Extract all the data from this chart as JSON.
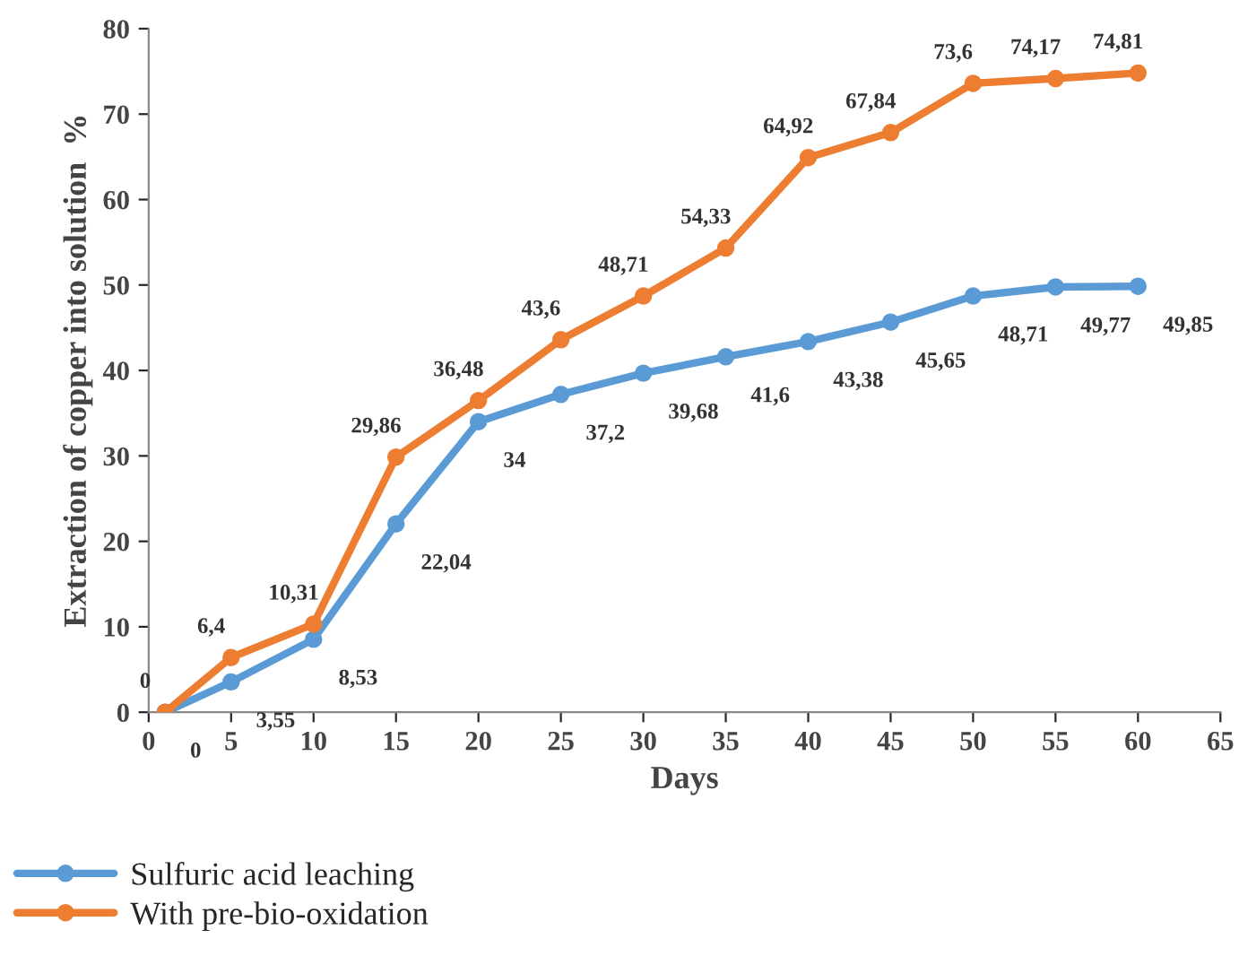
{
  "chart_data": {
    "type": "line",
    "xlabel": "Days",
    "ylabel": "Extraction of copper into solution  %",
    "x": [
      1,
      5,
      10,
      15,
      20,
      25,
      30,
      35,
      40,
      45,
      50,
      55,
      60
    ],
    "series": [
      {
        "name": "Sulfuric acid leaching",
        "color": "#5b9bd5",
        "values": [
          0,
          3.55,
          8.53,
          22.04,
          34,
          37.2,
          39.68,
          41.6,
          43.38,
          45.65,
          48.71,
          49.77,
          49.85
        ],
        "value_labels": [
          "0",
          "3,55",
          "8,53",
          "22,04",
          "34",
          "37,2",
          "39,68",
          "41,6",
          "43,38",
          "45,65",
          "48,71",
          "49,77",
          "49,85"
        ]
      },
      {
        "name": "With pre-bio-oxidation",
        "color": "#ed7d31",
        "values": [
          0,
          6.4,
          10.31,
          29.86,
          36.48,
          43.6,
          48.71,
          54.33,
          64.92,
          67.84,
          73.6,
          74.17,
          74.81
        ],
        "value_labels": [
          "0",
          "6,4",
          "10,31",
          "29,86",
          "36,48",
          "43,6",
          "48,71",
          "54,33",
          "64,92",
          "67,84",
          "73,6",
          "74,17",
          "74,81"
        ]
      }
    ],
    "xlim": [
      0,
      65
    ],
    "xticks": [
      0,
      5,
      10,
      15,
      20,
      25,
      30,
      35,
      40,
      45,
      50,
      55,
      60,
      65
    ],
    "ylim": [
      0,
      80
    ],
    "yticks": [
      0,
      10,
      20,
      30,
      40,
      50,
      60,
      70,
      80
    ],
    "marker": "circle",
    "line_style": "solid",
    "grid": false,
    "legend": "bottom left"
  }
}
